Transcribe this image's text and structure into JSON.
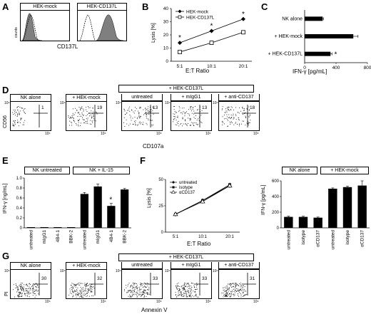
{
  "panels": {
    "A": {
      "label": "A",
      "plots": [
        "HEK-mock",
        "HEK-CD137L"
      ],
      "xlabel": "CD137L",
      "ylabel": "counts"
    },
    "B": {
      "label": "B",
      "ylabel": "Lysis [%]",
      "xlabel": "E:T Ratio",
      "sig": "*"
    },
    "C": {
      "label": "C",
      "xlabel": "IFN-γ [pg/mL]",
      "sig": "*"
    },
    "D": {
      "label": "D",
      "ylabel": "CD56",
      "xlabel": "CD107a",
      "group_header": "+ HEK-CD137L",
      "plots": [
        {
          "title": "NK alone",
          "quadrant_value": "1"
        },
        {
          "title": "+ HEK-mock",
          "quadrant_value": "19"
        },
        {
          "title": "untreated",
          "quadrant_value": "13"
        },
        {
          "title": "+ mIgG1",
          "quadrant_value": "13"
        },
        {
          "title": "+ anti-CD137",
          "quadrant_value": "18"
        }
      ],
      "axis_tick": "10⁴"
    },
    "E": {
      "label": "E",
      "ylabel": "IFN-γ [ng/mL]",
      "groups": [
        "NK untreated",
        "NK + IL-15"
      ],
      "sig": "*"
    },
    "F": {
      "label": "F",
      "ylabel_left": "Lysis [%]",
      "xlabel_left": "E:T Ratio",
      "ylabel_right": "IFN-γ [pg/mL]",
      "groups": [
        "NK alone",
        "+ HEK-mock"
      ]
    },
    "G": {
      "label": "G",
      "ylabel": "PI",
      "xlabel": "Annexin V",
      "group_header": "+ HEK-CD137L",
      "plots": [
        {
          "title": "NK alone",
          "quadrant_value": "30"
        },
        {
          "title": "+ HEK-mock",
          "quadrant_value": "32"
        },
        {
          "title": "untreated",
          "quadrant_value": "33"
        },
        {
          "title": "+ mIgG1",
          "quadrant_value": "33"
        },
        {
          "title": "+ anti-CD137",
          "quadrant_value": "31"
        }
      ],
      "axis_tick": "10⁴"
    }
  },
  "chart_data": [
    {
      "id": "B",
      "type": "line",
      "categories": [
        "5:1",
        "10:1",
        "20:1"
      ],
      "series": [
        {
          "name": "HEK-mock",
          "values": [
            14,
            23,
            32
          ],
          "marker": "filled-diamond"
        },
        {
          "name": "HEK-CD137L",
          "values": [
            7,
            14,
            22
          ],
          "marker": "open-square"
        }
      ],
      "ylim": [
        0,
        40
      ],
      "yticks": [
        "0",
        "10",
        "20",
        "30",
        "40"
      ],
      "xlabel": "E:T Ratio",
      "ylabel": "Lysis [%]",
      "annotations": [
        "*",
        "*",
        "*"
      ]
    },
    {
      "id": "C",
      "type": "bar",
      "orientation": "horizontal",
      "categories": [
        "NK alone",
        "+ HEK-mock",
        "+ HEK-CD137L"
      ],
      "values": [
        230,
        620,
        330
      ],
      "errors": [
        10,
        60,
        20
      ],
      "xlim": [
        0,
        800
      ],
      "xticks": [
        "0",
        "400",
        "800"
      ],
      "xlabel": "IFN-γ [pg/mL]",
      "annotations": [
        "",
        "",
        "*"
      ]
    },
    {
      "id": "E",
      "type": "bar",
      "categories": [
        "untreated",
        "mIgG1",
        "4B4-1",
        "BBK-2",
        "untreated",
        "mIgG1",
        "4B4-1",
        "BBK-2"
      ],
      "values": [
        0.0,
        0.0,
        0.0,
        0.0,
        0.68,
        0.83,
        0.44,
        0.77
      ],
      "errors": [
        0,
        0,
        0,
        0,
        0.03,
        0.05,
        0.05,
        0.02
      ],
      "ylim": [
        0,
        1.0
      ],
      "yticks": [
        "0",
        "0.2",
        "0.4",
        "0.6",
        "0.8",
        "1.0"
      ],
      "ylabel": "IFN-γ [ng/mL]",
      "annotations": [
        "",
        "",
        "",
        "",
        "",
        "",
        "*",
        ""
      ]
    },
    {
      "id": "F-left",
      "type": "line",
      "categories": [
        "5:1",
        "10:1",
        "20:1"
      ],
      "series": [
        {
          "name": "untreated",
          "values": [
            17,
            30,
            44
          ],
          "marker": "filled-diamond"
        },
        {
          "name": "isotype",
          "values": [
            17,
            30,
            45
          ],
          "marker": "filled-square"
        },
        {
          "name": "αCD137",
          "values": [
            17,
            29,
            44
          ],
          "marker": "open-triangle"
        }
      ],
      "ylim": [
        0,
        50
      ],
      "yticks": [
        "0",
        "25",
        "50"
      ],
      "xlabel": "E:T Ratio",
      "ylabel": "Lysis [%]"
    },
    {
      "id": "F-right",
      "type": "bar",
      "categories": [
        "untreated",
        "isotype",
        "αCD137",
        "untreated",
        "isotype",
        "αCD137"
      ],
      "values": [
        140,
        140,
        130,
        500,
        520,
        540
      ],
      "errors": [
        10,
        8,
        8,
        10,
        12,
        60
      ],
      "ylim": [
        0,
        600
      ],
      "yticks": [
        "0",
        "200",
        "400",
        "600"
      ],
      "ylabel": "IFN-γ [pg/mL]"
    }
  ],
  "colors": {
    "bar": "#000000",
    "hist_fill": "#808080",
    "dots": "#000000"
  }
}
